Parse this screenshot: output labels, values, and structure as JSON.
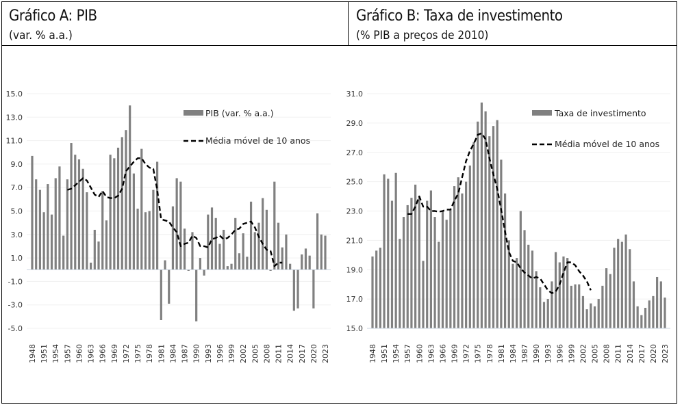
{
  "panels": {
    "a": {
      "title": "Gráfico A: PIB",
      "subtitle": "(var. % a.a.)"
    },
    "b": {
      "title": "Gráfico B: Taxa de investimento",
      "subtitle": "(% PIB a preços de 2010)"
    }
  },
  "chart_data": [
    {
      "id": "A",
      "type": "bar",
      "title": "Gráfico A: PIB",
      "subtitle": "(var. % a.a.)",
      "xlabel": "",
      "ylabel": "",
      "ylim": [
        -5,
        15
      ],
      "yticks": [
        15,
        13,
        11,
        9,
        7,
        5,
        3,
        1,
        -1,
        -3,
        -5
      ],
      "ytick_labels": [
        "15.0",
        "13.0",
        "11.0",
        "9.0",
        "7.0",
        "5.0",
        "3.0",
        "1.0",
        "-1.0",
        "-3.0",
        "-5.0"
      ],
      "grid": true,
      "legend_position": "top-right",
      "xtick_labels": [
        "1948",
        "1951",
        "1954",
        "1957",
        "1960",
        "1963",
        "1966",
        "1969",
        "1972",
        "1975",
        "1978",
        "1981",
        "1984",
        "1987",
        "1990",
        "1993",
        "1996",
        "1999",
        "2002",
        "2005",
        "2008",
        "2011",
        "2014",
        "2017",
        "2020",
        "2023"
      ],
      "x_start": 1948,
      "x_end": 2023,
      "series": [
        {
          "name": "PIB (var. % a.a.)",
          "kind": "bar",
          "color": "#808080",
          "values": [
            9.7,
            7.7,
            6.8,
            4.9,
            7.3,
            4.7,
            7.8,
            8.8,
            2.9,
            7.7,
            10.8,
            9.8,
            9.4,
            8.6,
            6.6,
            0.6,
            3.4,
            2.4,
            6.7,
            4.2,
            9.8,
            9.5,
            10.4,
            11.3,
            11.9,
            14.0,
            8.2,
            5.2,
            10.3,
            4.9,
            5.0,
            6.8,
            9.2,
            -4.3,
            0.8,
            -2.9,
            5.4,
            7.8,
            7.5,
            3.5,
            -0.1,
            3.2,
            -4.4,
            1.0,
            -0.5,
            4.7,
            5.3,
            4.4,
            2.2,
            3.4,
            0.3,
            0.5,
            4.4,
            1.4,
            3.1,
            1.1,
            5.8,
            3.2,
            4.0,
            6.1,
            5.1,
            -0.1,
            7.5,
            4.0,
            1.9,
            3.0,
            0.5,
            -3.5,
            -3.3,
            1.3,
            1.8,
            1.2,
            -3.3,
            4.8,
            3.0,
            2.9
          ]
        },
        {
          "name": "Média móvel de 10 anos",
          "kind": "line",
          "style": "dashed",
          "color": "#000000",
          "start_year": 1957,
          "values": [
            6.8,
            6.9,
            7.2,
            7.5,
            7.8,
            7.6,
            7.0,
            6.4,
            6.2,
            6.7,
            6.2,
            6.1,
            6.1,
            6.3,
            6.9,
            8.4,
            8.8,
            9.2,
            9.5,
            9.5,
            9.0,
            8.7,
            8.6,
            6.8,
            4.3,
            4.2,
            4.1,
            3.6,
            3.2,
            2.0,
            2.2,
            2.3,
            2.9,
            2.7,
            2.0,
            2.0,
            1.9,
            2.6,
            2.7,
            2.9,
            2.6,
            2.7,
            3.0,
            3.4,
            3.5,
            3.9,
            4.0,
            4.1,
            3.6,
            2.8,
            2.2,
            1.7,
            1.6,
            0.3,
            0.6,
            0.6
          ]
        }
      ]
    },
    {
      "id": "B",
      "type": "bar",
      "title": "Gráfico B: Taxa de investimento",
      "subtitle": "(% PIB a preços de 2010)",
      "xlabel": "",
      "ylabel": "",
      "ylim": [
        15,
        31
      ],
      "yticks": [
        31,
        29,
        27,
        25,
        23,
        21,
        19,
        17,
        15
      ],
      "ytick_labels": [
        "31.0",
        "29.0",
        "27.0",
        "25.0",
        "23.0",
        "21.0",
        "19.0",
        "17.0",
        "15.0"
      ],
      "grid": true,
      "legend_position": "top-right",
      "xtick_labels": [
        "1948",
        "1951",
        "1954",
        "1957",
        "1960",
        "1963",
        "1966",
        "1969",
        "1972",
        "1975",
        "1978",
        "1981",
        "1984",
        "1987",
        "1990",
        "1993",
        "1996",
        "1999",
        "2002",
        "2005",
        "2008",
        "2011",
        "2014",
        "2017",
        "2020",
        "2023"
      ],
      "x_start": 1948,
      "x_end": 2023,
      "series": [
        {
          "name": "Taxa de investimento",
          "kind": "bar",
          "color": "#808080",
          "values": [
            19.9,
            20.3,
            20.5,
            25.5,
            25.2,
            23.7,
            25.6,
            21.1,
            22.6,
            23.4,
            23.9,
            24.8,
            24.0,
            19.6,
            23.7,
            24.4,
            22.6,
            20.9,
            23.0,
            22.4,
            23.1,
            24.7,
            25.3,
            24.2,
            25.0,
            26.1,
            27.7,
            29.1,
            30.4,
            29.8,
            28.1,
            28.8,
            29.2,
            26.5,
            24.2,
            21.0,
            19.4,
            19.8,
            23.0,
            21.7,
            20.7,
            20.3,
            18.9,
            17.8,
            16.8,
            17.0,
            18.2,
            20.2,
            19.5,
            19.9,
            19.8,
            17.9,
            18.0,
            18.0,
            17.2,
            16.3,
            16.7,
            16.5,
            17.0,
            17.9,
            19.1,
            18.7,
            20.5,
            21.1,
            20.9,
            21.4,
            20.4,
            18.2,
            16.5,
            15.9,
            16.4,
            16.9,
            17.2,
            18.5,
            18.2,
            17.1
          ]
        },
        {
          "name": "Média móvel de 10 anos",
          "kind": "line",
          "style": "dashed",
          "color": "#000000",
          "start_year": 1957,
          "values": [
            22.8,
            22.8,
            23.3,
            24.0,
            23.3,
            23.3,
            23.0,
            23.0,
            22.95,
            23.0,
            23.1,
            23.1,
            23.7,
            24.2,
            25.3,
            26.4,
            27.1,
            27.6,
            28.2,
            28.3,
            27.9,
            26.6,
            25.5,
            24.5,
            23.1,
            21.6,
            20.2,
            19.6,
            19.5,
            19.1,
            18.8,
            18.6,
            18.4,
            18.5,
            18.4,
            18.0,
            17.6,
            17.4,
            17.5,
            18.0,
            18.8,
            19.5,
            19.5,
            19.3,
            18.9,
            18.6,
            18.2,
            17.6
          ]
        }
      ]
    }
  ]
}
